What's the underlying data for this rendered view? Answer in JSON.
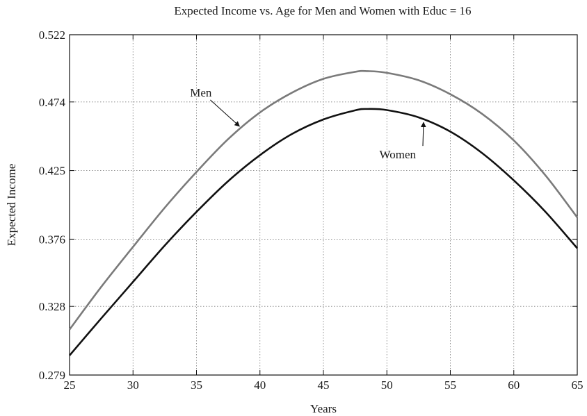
{
  "chart_data": {
    "type": "line",
    "title": "Expected Income vs. Age for Men and Women with Educ = 16",
    "xlabel": "Years",
    "ylabel": "Expected Income",
    "xlim": [
      25,
      65
    ],
    "ylim": [
      0.279,
      0.522
    ],
    "x_ticks": [
      25,
      30,
      35,
      40,
      45,
      50,
      55,
      60,
      65
    ],
    "y_ticks": [
      "0.279",
      "0.328",
      "0.376",
      "0.425",
      "0.474",
      "0.522"
    ],
    "grid": true,
    "legend": "none",
    "series": [
      {
        "name": "Men",
        "color": "#7a7a7a",
        "x": [
          25,
          27.5,
          30,
          32.5,
          35,
          37.5,
          40,
          42.5,
          45,
          47.5,
          48.5,
          50,
          52.5,
          55,
          57.5,
          60,
          62.5,
          65
        ],
        "y": [
          0.3115,
          0.342,
          0.3705,
          0.3985,
          0.424,
          0.4475,
          0.4665,
          0.4805,
          0.4905,
          0.4955,
          0.496,
          0.4948,
          0.4895,
          0.4795,
          0.4655,
          0.4465,
          0.4215,
          0.3915
        ]
      },
      {
        "name": "Women",
        "color": "#111111",
        "x": [
          25,
          27.5,
          30,
          32.5,
          35,
          37.5,
          40,
          42.5,
          45,
          47.5,
          48.5,
          50,
          52.5,
          55,
          57.5,
          60,
          62.5,
          65
        ],
        "y": [
          0.293,
          0.3195,
          0.3455,
          0.3715,
          0.3955,
          0.4175,
          0.436,
          0.451,
          0.4615,
          0.468,
          0.469,
          0.4682,
          0.463,
          0.4528,
          0.4375,
          0.418,
          0.3955,
          0.3695
        ]
      }
    ],
    "annotations": [
      {
        "text": "Men",
        "series": "Men",
        "arrow_to_x": 38.5
      },
      {
        "text": "Women",
        "series": "Women",
        "arrow_to_x": 53
      }
    ]
  }
}
